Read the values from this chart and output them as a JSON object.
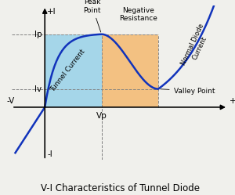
{
  "title": "V-I Characteristics of Tunnel Diode",
  "title_fontsize": 8.5,
  "bg_color": "#f0f0ec",
  "curve_color": "#1133bb",
  "curve_lw": 1.8,
  "peak_label": "Peak\nPoint",
  "valley_label": "Valley Point",
  "neg_res_label": "Negative\nResistance",
  "tunnel_label": "Tunnel Current",
  "normal_label": "Normal Diode\nCurrent",
  "Ip_label": "Ip",
  "Iv_label": "Iv",
  "Vp_label": "Vp",
  "xmin": -0.28,
  "xmax": 1.55,
  "ymin": -0.52,
  "ymax": 1.0,
  "Vp": 0.48,
  "Ip": 0.72,
  "Vv": 0.96,
  "Iv": 0.18,
  "tunnel_fill_color": "#7ec8e8",
  "tunnel_fill_alpha": 0.65,
  "neg_res_fill_color": "#f5a84a",
  "neg_res_fill_alpha": 0.65
}
